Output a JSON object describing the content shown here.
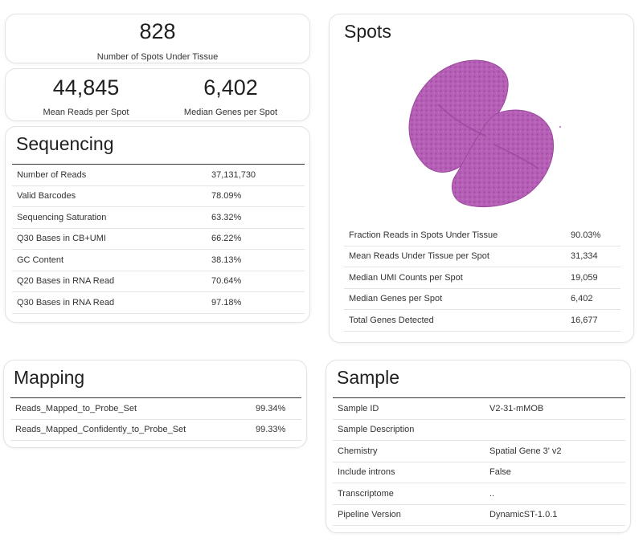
{
  "spots_under_tissue": {
    "value": "828",
    "label": "Number of Spots Under Tissue"
  },
  "mean_reads": {
    "value": "44,845",
    "label": "Mean Reads per Spot"
  },
  "median_genes": {
    "value": "6,402",
    "label": "Median Genes per Spot"
  },
  "sequencing": {
    "title": "Sequencing",
    "rows": [
      {
        "key": "Number of Reads",
        "value": "37,131,730"
      },
      {
        "key": "Valid Barcodes",
        "value": "78.09%"
      },
      {
        "key": "Sequencing Saturation",
        "value": "63.32%"
      },
      {
        "key": "Q30 Bases in CB+UMI",
        "value": "66.22%"
      },
      {
        "key": "GC Content",
        "value": "38.13%"
      },
      {
        "key": "Q20 Bases in RNA Read",
        "value": "70.64%"
      },
      {
        "key": "Q30 Bases in RNA Read",
        "value": "97.18%"
      }
    ]
  },
  "spots": {
    "title": "Spots",
    "rows": [
      {
        "key": "Fraction Reads in Spots Under Tissue",
        "value": "90.03%"
      },
      {
        "key": "Mean Reads Under Tissue per Spot",
        "value": "31,334"
      },
      {
        "key": "Median UMI Counts per Spot",
        "value": "19,059"
      },
      {
        "key": "Median Genes per Spot",
        "value": "6,402"
      },
      {
        "key": "Total Genes Detected",
        "value": "16,677"
      }
    ]
  },
  "mapping": {
    "title": "Mapping",
    "rows": [
      {
        "key": "Reads_Mapped_to_Probe_Set",
        "value": "99.34%"
      },
      {
        "key": "Reads_Mapped_Confidently_to_Probe_Set",
        "value": "99.33%"
      }
    ]
  },
  "sample": {
    "title": "Sample",
    "rows": [
      {
        "key": "Sample ID",
        "value": "V2-31-mMOB"
      },
      {
        "key": "Sample Description",
        "value": ""
      },
      {
        "key": "Chemistry",
        "value": "Spatial Gene 3' v2"
      },
      {
        "key": "Include introns",
        "value": "False"
      },
      {
        "key": "Transcriptome",
        "value": ".."
      },
      {
        "key": "Pipeline Version",
        "value": "DynamicST-1.0.1"
      }
    ]
  },
  "colors": {
    "tissue": "#b45cb4",
    "tissue_dark": "#8f3f93"
  }
}
